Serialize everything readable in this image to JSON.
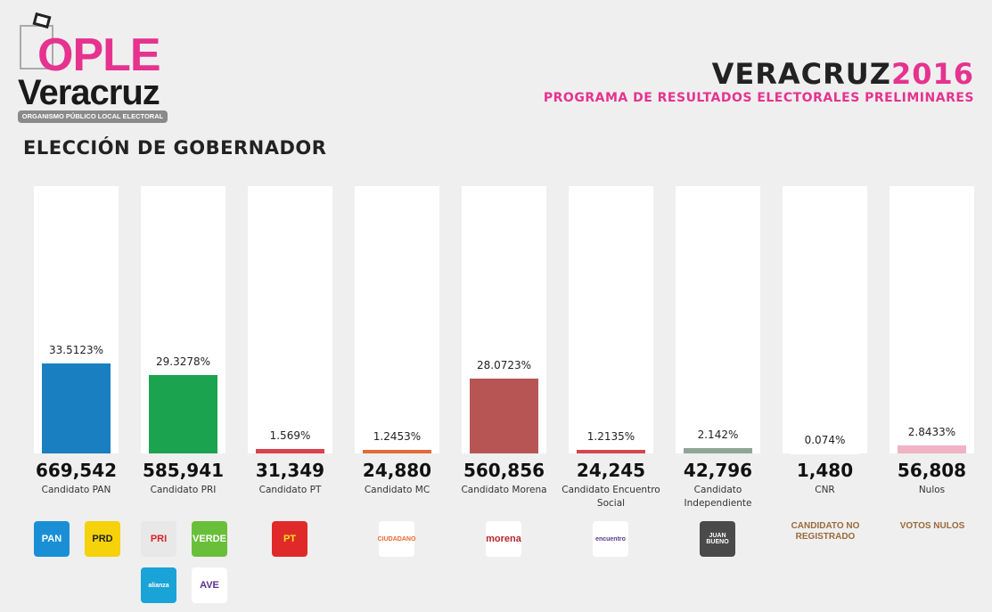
{
  "header": {
    "logo_text": "OPLE",
    "logo_sub": "Veracruz",
    "logo_org": "ORGANISMO PÚBLICO LOCAL ELECTORAL",
    "title_main": "VERACRUZ",
    "title_year": "2016",
    "subtitle": "PROGRAMA DE RESULTADOS ELECTORALES PRELIMINARES"
  },
  "page_title": "ELECCIÓN DE GOBERNADOR",
  "chart_data": {
    "type": "bar",
    "ylim": [
      0,
      100
    ],
    "grid": false,
    "categories": [
      "Candidato PAN",
      "Candidato PRI",
      "Candidato PT",
      "Candidato MC",
      "Candidato Morena",
      "Candidato Encuentro Social",
      "Candidato Independiente",
      "CNR",
      "Nulos"
    ],
    "values": [
      33.5123,
      29.3278,
      1.569,
      1.2453,
      28.0723,
      1.2135,
      2.142,
      0.074,
      2.8433
    ],
    "pct_labels": [
      "33.5123%",
      "29.3278%",
      "1.569%",
      "1.2453%",
      "28.0723%",
      "1.2135%",
      "2.142%",
      "0.074%",
      "2.8433%"
    ],
    "votes": [
      "669,542",
      "585,941",
      "31,349",
      "24,880",
      "560,856",
      "24,245",
      "42,796",
      "1,480",
      "56,808"
    ],
    "colors": [
      "#1a7fc1",
      "#1ba34f",
      "#d9434a",
      "#e06b3d",
      "#b75555",
      "#d5474f",
      "#8fa595",
      "#ffffff",
      "#efb3c3"
    ]
  },
  "logos": [
    {
      "col": 0,
      "row": 0,
      "pos": 0,
      "text": "PAN",
      "bg": "#1a8fd6",
      "fg": "#fff"
    },
    {
      "col": 0,
      "row": 0,
      "pos": 1,
      "text": "PRD",
      "bg": "#f5d20a",
      "fg": "#222"
    },
    {
      "col": 1,
      "row": 0,
      "pos": 0,
      "text": "PRI",
      "bg": "#e8e8e8",
      "fg": "#d6222b"
    },
    {
      "col": 1,
      "row": 0,
      "pos": 1,
      "text": "VERDE",
      "bg": "#6abf3a",
      "fg": "#fff"
    },
    {
      "col": 1,
      "row": 1,
      "pos": 0,
      "text": "alianza",
      "bg": "#1aa3d6",
      "fg": "#fff"
    },
    {
      "col": 1,
      "row": 1,
      "pos": 1,
      "text": "AVE",
      "bg": "#fff",
      "fg": "#5b2d8e"
    },
    {
      "col": 2,
      "row": 0,
      "pos": 0.5,
      "text": "PT",
      "bg": "#e02a2a",
      "fg": "#f8e21b"
    },
    {
      "col": 3,
      "row": 0,
      "pos": 0.5,
      "text": "CIUDADANO",
      "bg": "#fff",
      "fg": "#e8692b"
    },
    {
      "col": 4,
      "row": 0,
      "pos": 0.5,
      "text": "morena",
      "bg": "#fff",
      "fg": "#b5262f"
    },
    {
      "col": 5,
      "row": 0,
      "pos": 0.5,
      "text": "encuentro",
      "bg": "#fff",
      "fg": "#5a3b8e"
    },
    {
      "col": 6,
      "row": 0,
      "pos": 0.5,
      "text": "JUAN BUENO",
      "bg": "#4a4a4a",
      "fg": "#fff"
    }
  ],
  "text_logos": [
    {
      "col": 7,
      "text": "CANDIDATO NO REGISTRADO"
    },
    {
      "col": 8,
      "text": "VOTOS NULOS"
    }
  ]
}
